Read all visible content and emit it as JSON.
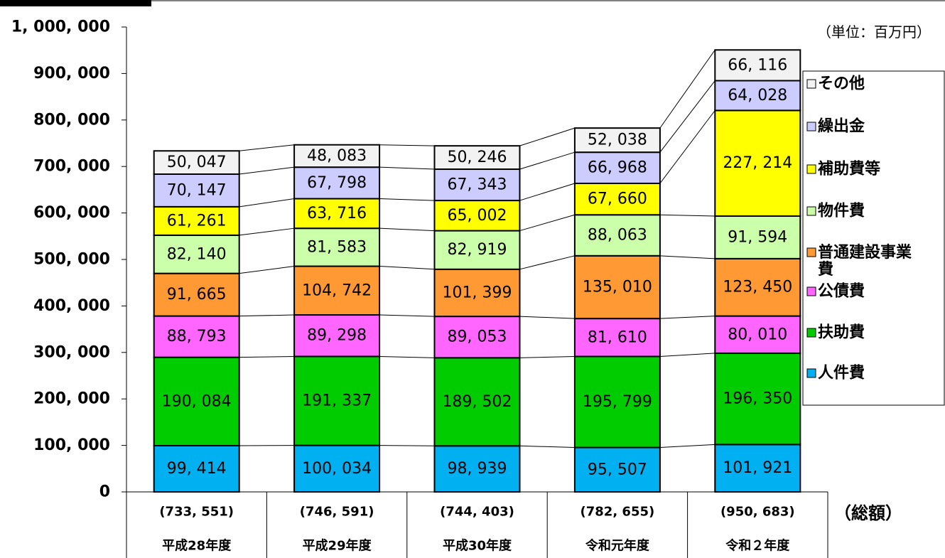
{
  "chart_data": {
    "type": "stacked_bar",
    "unit_note": "（単位：百万円）",
    "total_caption": "（総額）",
    "categories": [
      "平成28年度",
      "平成29年度",
      "平成30年度",
      "令和元年度",
      "令和２年度"
    ],
    "total_labels": [
      "(733, 551)",
      "(746, 591)",
      "(744, 403)",
      "(782, 655)",
      "(950, 683)"
    ],
    "ylim": [
      0,
      1000000
    ],
    "yticks": [
      0,
      {
        "value": 100000,
        "label": "100, 000"
      },
      {
        "value": 200000,
        "label": "200, 000"
      },
      {
        "value": 300000,
        "label": "300, 000"
      },
      {
        "value": 400000,
        "label": "400, 000"
      },
      {
        "value": 500000,
        "label": "500, 000"
      },
      {
        "value": 600000,
        "label": "600, 000"
      },
      {
        "value": 700000,
        "label": "700, 000"
      },
      {
        "value": 800000,
        "label": "800, 000"
      },
      {
        "value": 900000,
        "label": "900, 000"
      },
      {
        "value": 1000000,
        "label": "1, 000, 000"
      }
    ],
    "series": [
      {
        "name": "人件費",
        "color": "#00b0f0",
        "values": [
          99414,
          100034,
          98939,
          95507,
          101921
        ],
        "value_labels": [
          "99, 414",
          "100, 034",
          "98, 939",
          "95, 507",
          "101, 921"
        ]
      },
      {
        "name": "扶助費",
        "color": "#00cc00",
        "values": [
          190084,
          191337,
          189502,
          195799,
          196350
        ],
        "value_labels": [
          "190, 084",
          "191, 337",
          "189, 502",
          "195, 799",
          "196, 350"
        ]
      },
      {
        "name": "公債費",
        "color": "#ff66ff",
        "values": [
          88793,
          89298,
          89053,
          81610,
          80010
        ],
        "value_labels": [
          "88, 793",
          "89, 298",
          "89, 053",
          "81, 610",
          "80, 010"
        ]
      },
      {
        "name": "普通建設事業費",
        "color": "#ff9933",
        "values": [
          91665,
          104742,
          101399,
          135010,
          123450
        ],
        "value_labels": [
          "91, 665",
          "104, 742",
          "101, 399",
          "135, 010",
          "123, 450"
        ]
      },
      {
        "name": "物件費",
        "color": "#ccffaa",
        "values": [
          82140,
          81583,
          82919,
          88063,
          91594
        ],
        "value_labels": [
          "82, 140",
          "81, 583",
          "82, 919",
          "88, 063",
          "91, 594"
        ]
      },
      {
        "name": "補助費等",
        "color": "#ffff00",
        "values": [
          61261,
          63716,
          65002,
          67660,
          227214
        ],
        "value_labels": [
          "61, 261",
          "63, 716",
          "65, 002",
          "67, 660",
          "227, 214"
        ]
      },
      {
        "name": "繰出金",
        "color": "#ccccff",
        "values": [
          70147,
          67798,
          67343,
          66968,
          64028
        ],
        "value_labels": [
          "70, 147",
          "67, 798",
          "67, 343",
          "66, 968",
          "64, 028"
        ]
      },
      {
        "name": "その他",
        "color": "#f2f2f2",
        "values": [
          50047,
          48083,
          50246,
          52038,
          66116
        ],
        "value_labels": [
          "50, 047",
          "48, 083",
          "50, 246",
          "52, 038",
          "66, 116"
        ]
      }
    ]
  }
}
